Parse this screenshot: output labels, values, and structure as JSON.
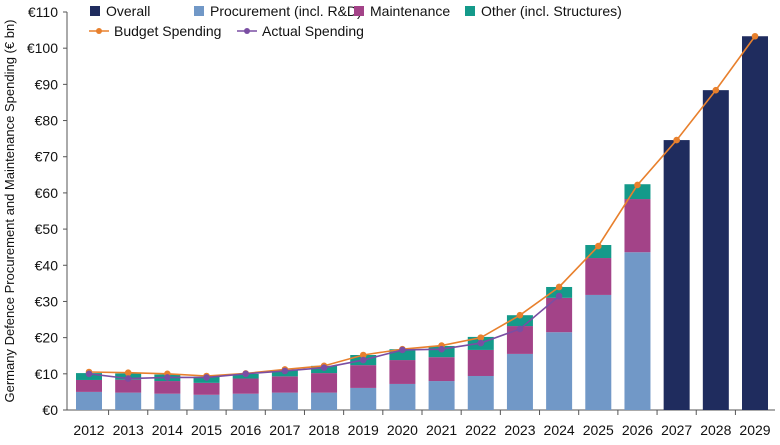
{
  "chart_data": {
    "type": "bar",
    "title": "",
    "ylabel": "Germany Defence Procurement and Maintenance Spending (€ bn)",
    "xlabel": "",
    "ylim": [
      0,
      110
    ],
    "yticks": [
      0,
      10,
      20,
      30,
      40,
      50,
      60,
      70,
      80,
      90,
      100,
      110
    ],
    "ytick_labels": [
      "€0",
      "€10",
      "€20",
      "€30",
      "€40",
      "€50",
      "€60",
      "€70",
      "€80",
      "€90",
      "€100",
      "€110"
    ],
    "grid": false,
    "legend_position": "top-left",
    "categories": [
      "2012",
      "2013",
      "2014",
      "2015",
      "2016",
      "2017",
      "2018",
      "2019",
      "2020",
      "2021",
      "2022",
      "2023",
      "2024",
      "2025",
      "2026",
      "2027",
      "2028",
      "2029"
    ],
    "series": [
      {
        "name": "Overall",
        "kind": "bar",
        "color": "#1f2c5e",
        "values": [
          null,
          null,
          null,
          null,
          null,
          null,
          null,
          null,
          null,
          null,
          null,
          null,
          null,
          null,
          null,
          74.6,
          88.4,
          103.3
        ]
      },
      {
        "name": "Procurement (incl. R&D)",
        "kind": "stacked-bar",
        "color": "#7198c7",
        "values": [
          5.0,
          4.8,
          4.5,
          4.2,
          4.5,
          4.8,
          4.8,
          6.1,
          7.2,
          8.0,
          9.4,
          15.5,
          21.5,
          31.8,
          43.6,
          null,
          null,
          null
        ]
      },
      {
        "name": "Maintenance",
        "kind": "stacked-bar",
        "color": "#a34388",
        "values": [
          3.3,
          3.6,
          3.5,
          3.3,
          4.2,
          4.5,
          5.4,
          6.3,
          6.6,
          6.6,
          7.2,
          7.7,
          9.5,
          10.2,
          14.7,
          null,
          null,
          null
        ]
      },
      {
        "name": "Other (incl. Structures)",
        "kind": "stacked-bar",
        "color": "#149a8a",
        "values": [
          1.9,
          1.7,
          1.8,
          1.7,
          1.3,
          1.7,
          2.0,
          2.8,
          3.0,
          3.1,
          3.6,
          3.0,
          3.0,
          3.6,
          4.1,
          null,
          null,
          null
        ]
      },
      {
        "name": "Budget Spending",
        "kind": "line",
        "color": "#e8802d",
        "values": [
          10.5,
          10.3,
          10.0,
          9.4,
          10.1,
          11.2,
          12.2,
          15.2,
          16.8,
          17.8,
          20.0,
          26.2,
          34.0,
          45.3,
          62.2,
          74.6,
          88.4,
          103.3
        ]
      },
      {
        "name": "Actual Spending",
        "kind": "line",
        "color": "#7a4ea3",
        "values": [
          10.0,
          8.7,
          9.0,
          9.0,
          10.0,
          10.8,
          11.7,
          13.8,
          16.6,
          16.8,
          18.5,
          22.4,
          31.5,
          null,
          null,
          null,
          null,
          null
        ]
      }
    ]
  }
}
